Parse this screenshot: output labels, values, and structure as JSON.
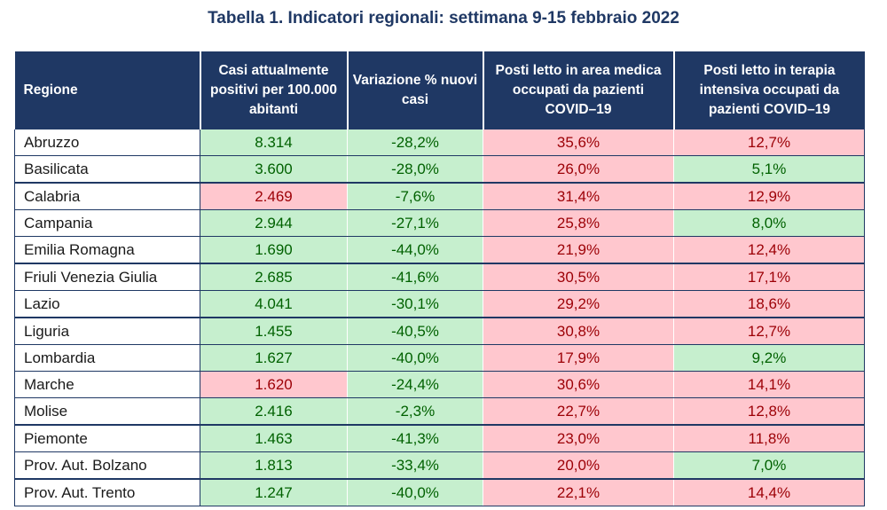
{
  "title": "Tabella 1. Indicatori regionali: settimana 9-15 febbraio 2022",
  "headers": [
    "Regione",
    "Casi attualmente positivi per 100.000 abitanti",
    "Variazione % nuovi casi",
    "Posti letto in area medica occupati da pazienti COVID–19",
    "Posti letto in terapia intensiva occupati da pazienti COVID–19"
  ],
  "colors": {
    "header_bg": "#1f3864",
    "green_fill": "#c6efce",
    "green_text": "#006100",
    "red_fill": "#ffc7ce",
    "red_text": "#9c0006"
  },
  "rows": [
    {
      "region": "Abruzzo",
      "cells": [
        {
          "v": "8.314",
          "s": "g"
        },
        {
          "v": "-28,2%",
          "s": "g"
        },
        {
          "v": "35,6%",
          "s": "r"
        },
        {
          "v": "12,7%",
          "s": "r"
        }
      ]
    },
    {
      "region": "Basilicata",
      "cells": [
        {
          "v": "3.600",
          "s": "g"
        },
        {
          "v": "-28,0%",
          "s": "g"
        },
        {
          "v": "26,0%",
          "s": "r"
        },
        {
          "v": "5,1%",
          "s": "g"
        }
      ]
    },
    {
      "region": "Calabria",
      "cells": [
        {
          "v": "2.469",
          "s": "r"
        },
        {
          "v": "-7,6%",
          "s": "g"
        },
        {
          "v": "31,4%",
          "s": "r"
        },
        {
          "v": "12,9%",
          "s": "r"
        }
      ]
    },
    {
      "region": "Campania",
      "cells": [
        {
          "v": "2.944",
          "s": "g"
        },
        {
          "v": "-27,1%",
          "s": "g"
        },
        {
          "v": "25,8%",
          "s": "r"
        },
        {
          "v": "8,0%",
          "s": "g"
        }
      ]
    },
    {
      "region": "Emilia Romagna",
      "cells": [
        {
          "v": "1.690",
          "s": "g"
        },
        {
          "v": "-44,0%",
          "s": "g"
        },
        {
          "v": "21,9%",
          "s": "r"
        },
        {
          "v": "12,4%",
          "s": "r"
        }
      ]
    },
    {
      "region": "Friuli Venezia Giulia",
      "cells": [
        {
          "v": "2.685",
          "s": "g"
        },
        {
          "v": "-41,6%",
          "s": "g"
        },
        {
          "v": "30,5%",
          "s": "r"
        },
        {
          "v": "17,1%",
          "s": "r"
        }
      ]
    },
    {
      "region": "Lazio",
      "cells": [
        {
          "v": "4.041",
          "s": "g"
        },
        {
          "v": "-30,1%",
          "s": "g"
        },
        {
          "v": "29,2%",
          "s": "r"
        },
        {
          "v": "18,6%",
          "s": "r"
        }
      ]
    },
    {
      "region": "Liguria",
      "cells": [
        {
          "v": "1.455",
          "s": "g"
        },
        {
          "v": "-40,5%",
          "s": "g"
        },
        {
          "v": "30,8%",
          "s": "r"
        },
        {
          "v": "12,7%",
          "s": "r"
        }
      ]
    },
    {
      "region": "Lombardia",
      "cells": [
        {
          "v": "1.627",
          "s": "g"
        },
        {
          "v": "-40,0%",
          "s": "g"
        },
        {
          "v": "17,9%",
          "s": "r"
        },
        {
          "v": "9,2%",
          "s": "g"
        }
      ]
    },
    {
      "region": "Marche",
      "cells": [
        {
          "v": "1.620",
          "s": "r"
        },
        {
          "v": "-24,4%",
          "s": "g"
        },
        {
          "v": "30,6%",
          "s": "r"
        },
        {
          "v": "14,1%",
          "s": "r"
        }
      ]
    },
    {
      "region": "Molise",
      "cells": [
        {
          "v": "2.416",
          "s": "g"
        },
        {
          "v": "-2,3%",
          "s": "g"
        },
        {
          "v": "22,7%",
          "s": "r"
        },
        {
          "v": "12,8%",
          "s": "r"
        }
      ]
    },
    {
      "region": "Piemonte",
      "cells": [
        {
          "v": "1.463",
          "s": "g"
        },
        {
          "v": "-41,3%",
          "s": "g"
        },
        {
          "v": "23,0%",
          "s": "r"
        },
        {
          "v": "11,8%",
          "s": "r"
        }
      ]
    },
    {
      "region": "Prov. Aut. Bolzano",
      "cells": [
        {
          "v": "1.813",
          "s": "g"
        },
        {
          "v": "-33,4%",
          "s": "g"
        },
        {
          "v": "20,0%",
          "s": "r"
        },
        {
          "v": "7,0%",
          "s": "g"
        }
      ]
    },
    {
      "region": "Prov. Aut. Trento",
      "cells": [
        {
          "v": "1.247",
          "s": "g"
        },
        {
          "v": "-40,0%",
          "s": "g"
        },
        {
          "v": "22,1%",
          "s": "r"
        },
        {
          "v": "14,4%",
          "s": "r"
        }
      ]
    }
  ]
}
